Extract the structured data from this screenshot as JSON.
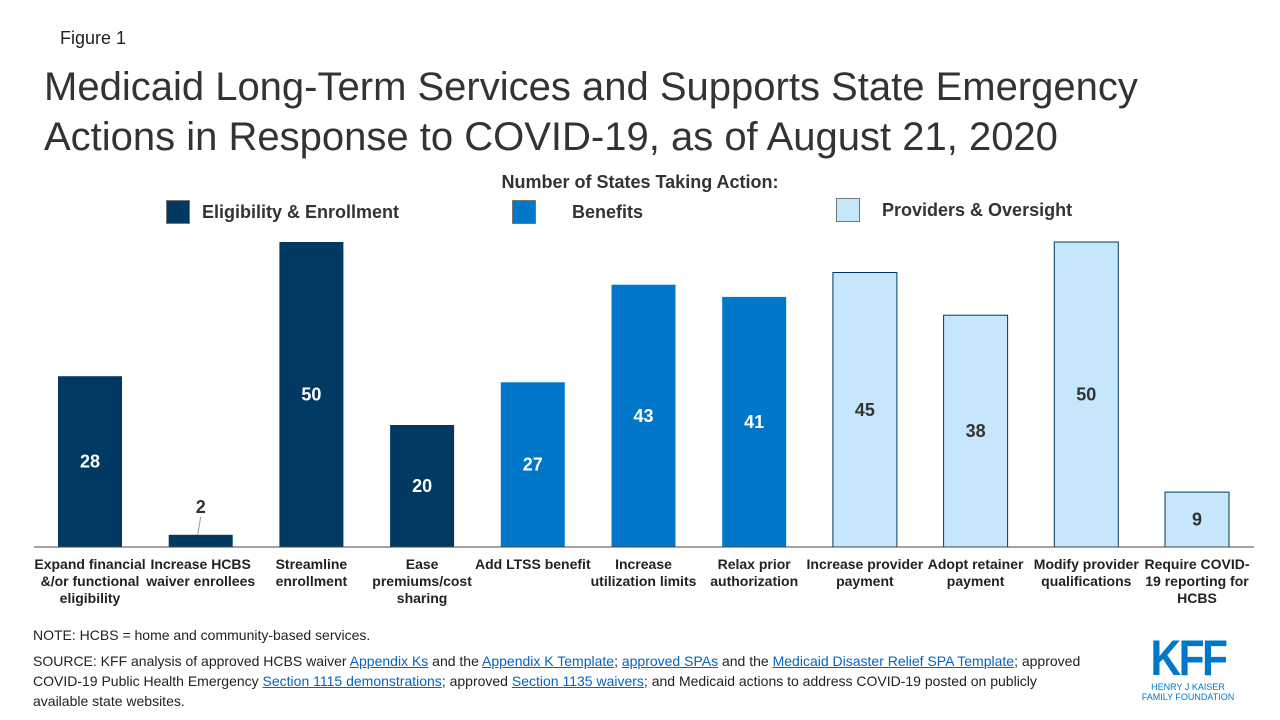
{
  "figure_label": "Figure 1",
  "title": "Medicaid Long-Term Services and Supports State Emergency Actions in Response to COVID-19, as of August 21, 2020",
  "colors": {
    "Eligibility & Enrollment": "#003a63",
    "Benefits": "#0077c8",
    "Providers & Oversight": "#c5e6fb"
  },
  "chart_data": {
    "type": "bar",
    "subtitle": "Number of States Taking Action:",
    "legend": [
      "Eligibility & Enrollment",
      "Benefits",
      "Providers & Oversight"
    ],
    "legend_position": "top",
    "categories": [
      "Expand financial &/or functional eligibility",
      "Increase HCBS waiver enrollees",
      "Streamline enrollment",
      "Ease premiums/cost sharing",
      "Add LTSS benefit",
      "Increase utilization limits",
      "Relax prior authorization",
      "Increase provider payment",
      "Adopt retainer payment",
      "Modify provider qualifications",
      "Require COVID-19 reporting for HCBS"
    ],
    "values": [
      28,
      2,
      50,
      20,
      27,
      43,
      41,
      45,
      38,
      50,
      9
    ],
    "groups": [
      "Eligibility & Enrollment",
      "Eligibility & Enrollment",
      "Eligibility & Enrollment",
      "Eligibility & Enrollment",
      "Benefits",
      "Benefits",
      "Benefits",
      "Providers & Oversight",
      "Providers & Oversight",
      "Providers & Oversight",
      "Providers & Oversight"
    ],
    "ylim": [
      0,
      50
    ],
    "grid": false
  },
  "note": "NOTE:  HCBS = home and community-based services.",
  "source": {
    "t1": "SOURCE: KFF analysis of approved HCBS waiver ",
    "l1": "Appendix Ks",
    "t2": " and the ",
    "l2": "Appendix K Template",
    "t3": "; ",
    "l3": "approved SPAs",
    "t4": " and the ",
    "l4": "Medicaid Disaster Relief SPA Template",
    "t5": "; approved COVID-19 Public Health Emergency ",
    "l5": "Section 1115 demonstrations",
    "t6": "; approved ",
    "l6": "Section 1135 waivers",
    "t7": "; and Medicaid actions to address COVID-19 posted on publicly available state websites."
  },
  "logo": {
    "name": "KFF",
    "sub": "HENRY J KAISER FAMILY FOUNDATION"
  }
}
